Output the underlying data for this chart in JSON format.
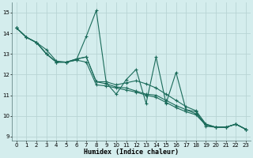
{
  "xlabel": "Humidex (Indice chaleur)",
  "xlim": [
    -0.5,
    23.5
  ],
  "ylim": [
    8.8,
    15.5
  ],
  "yticks": [
    9,
    10,
    11,
    12,
    13,
    14,
    15
  ],
  "xticks": [
    0,
    1,
    2,
    3,
    4,
    5,
    6,
    7,
    8,
    9,
    10,
    11,
    12,
    13,
    14,
    15,
    16,
    17,
    18,
    19,
    20,
    21,
    22,
    23
  ],
  "bg_color": "#d4eded",
  "grid_color": "#b8d4d4",
  "line_color": "#1a6b5a",
  "series": [
    [
      14.25,
      13.8,
      13.55,
      13.2,
      12.65,
      12.6,
      12.7,
      13.85,
      15.1,
      11.6,
      11.05,
      11.75,
      12.25,
      10.6,
      12.85,
      10.6,
      12.1,
      10.3,
      10.2,
      9.5,
      9.45,
      9.45,
      9.6,
      9.35
    ],
    [
      14.25,
      13.8,
      13.55,
      13.0,
      12.6,
      12.6,
      12.75,
      12.85,
      11.65,
      11.65,
      11.5,
      11.6,
      11.7,
      11.55,
      11.35,
      11.05,
      10.75,
      10.45,
      10.25,
      9.6,
      9.45,
      9.45,
      9.6,
      9.35
    ],
    [
      14.25,
      13.8,
      13.55,
      13.0,
      12.6,
      12.6,
      12.75,
      12.85,
      11.65,
      11.55,
      11.4,
      11.35,
      11.2,
      11.05,
      11.0,
      10.75,
      10.5,
      10.3,
      10.1,
      9.6,
      9.45,
      9.45,
      9.6,
      9.35
    ],
    [
      14.25,
      13.8,
      13.55,
      13.0,
      12.6,
      12.6,
      12.7,
      12.6,
      11.5,
      11.45,
      11.35,
      11.25,
      11.15,
      11.0,
      10.9,
      10.65,
      10.4,
      10.2,
      10.05,
      9.55,
      9.45,
      9.45,
      9.6,
      9.35
    ]
  ]
}
